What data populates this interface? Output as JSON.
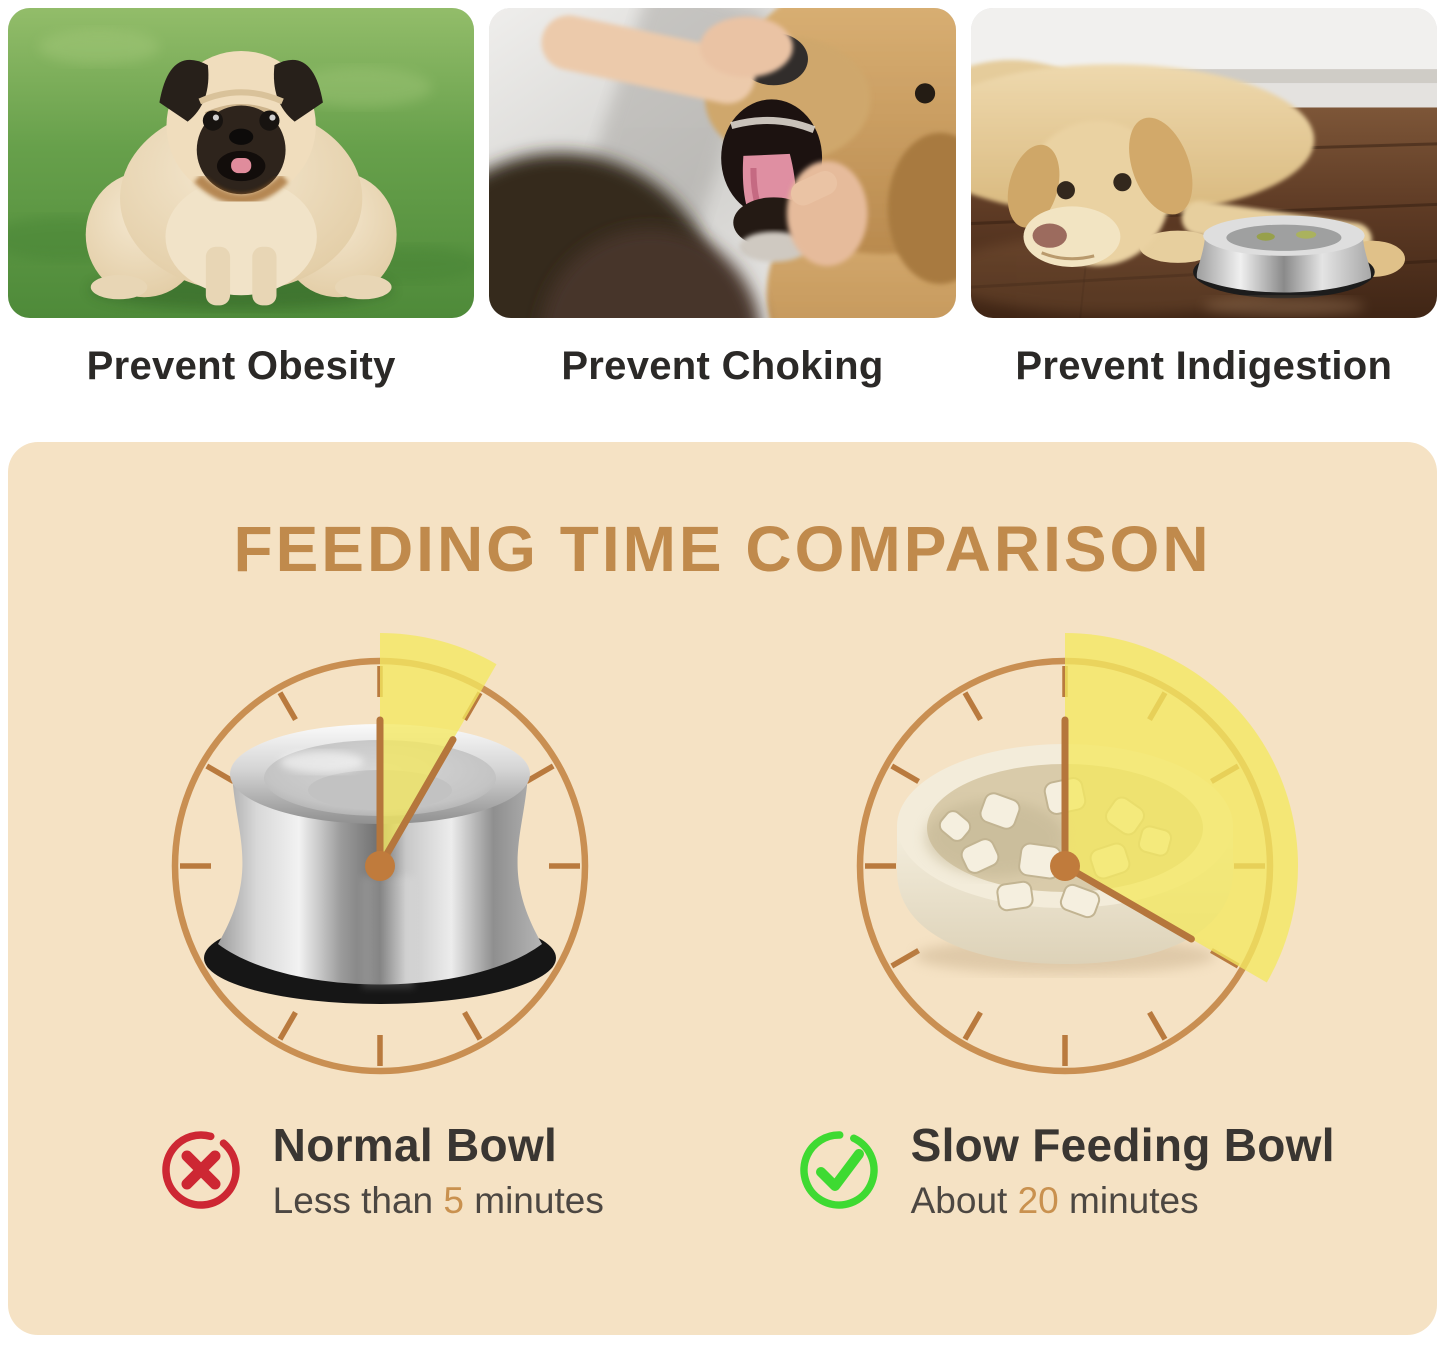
{
  "benefits": {
    "items": [
      {
        "label": "Prevent Obesity",
        "alt": "overweight pug standing on green grass"
      },
      {
        "label": "Prevent Choking",
        "alt": "person checking inside a golden retriever's open mouth"
      },
      {
        "label": "Prevent Indigestion",
        "alt": "labrador lying on wooden floor beside an empty steel bowl"
      }
    ]
  },
  "comparison": {
    "title": "FEEDING TIME COMPARISON",
    "dial_total_minutes": 60,
    "normal": {
      "name": "Normal Bowl",
      "time_prefix": "Less than",
      "time_value": "5",
      "time_suffix": "minutes",
      "minutes": 5,
      "icon": "cross"
    },
    "slow": {
      "name": "Slow Feeding Bowl",
      "time_prefix": "About",
      "time_value": "20",
      "time_suffix": "minutes",
      "minutes": 20,
      "icon": "check"
    }
  },
  "colors": {
    "panel": "#f5e2c4",
    "accent": "#c08a4c",
    "clock": "#c98f52",
    "tick": "#b97a3e",
    "wedge": "#f3e860",
    "hand": "#b5763c",
    "dot": "#c07b3c",
    "number": "#c9914f",
    "cross": "#cd2733",
    "check": "#3eda32",
    "caption": "#2b2927",
    "heading": "#3a3632",
    "time": "#4c4742"
  }
}
